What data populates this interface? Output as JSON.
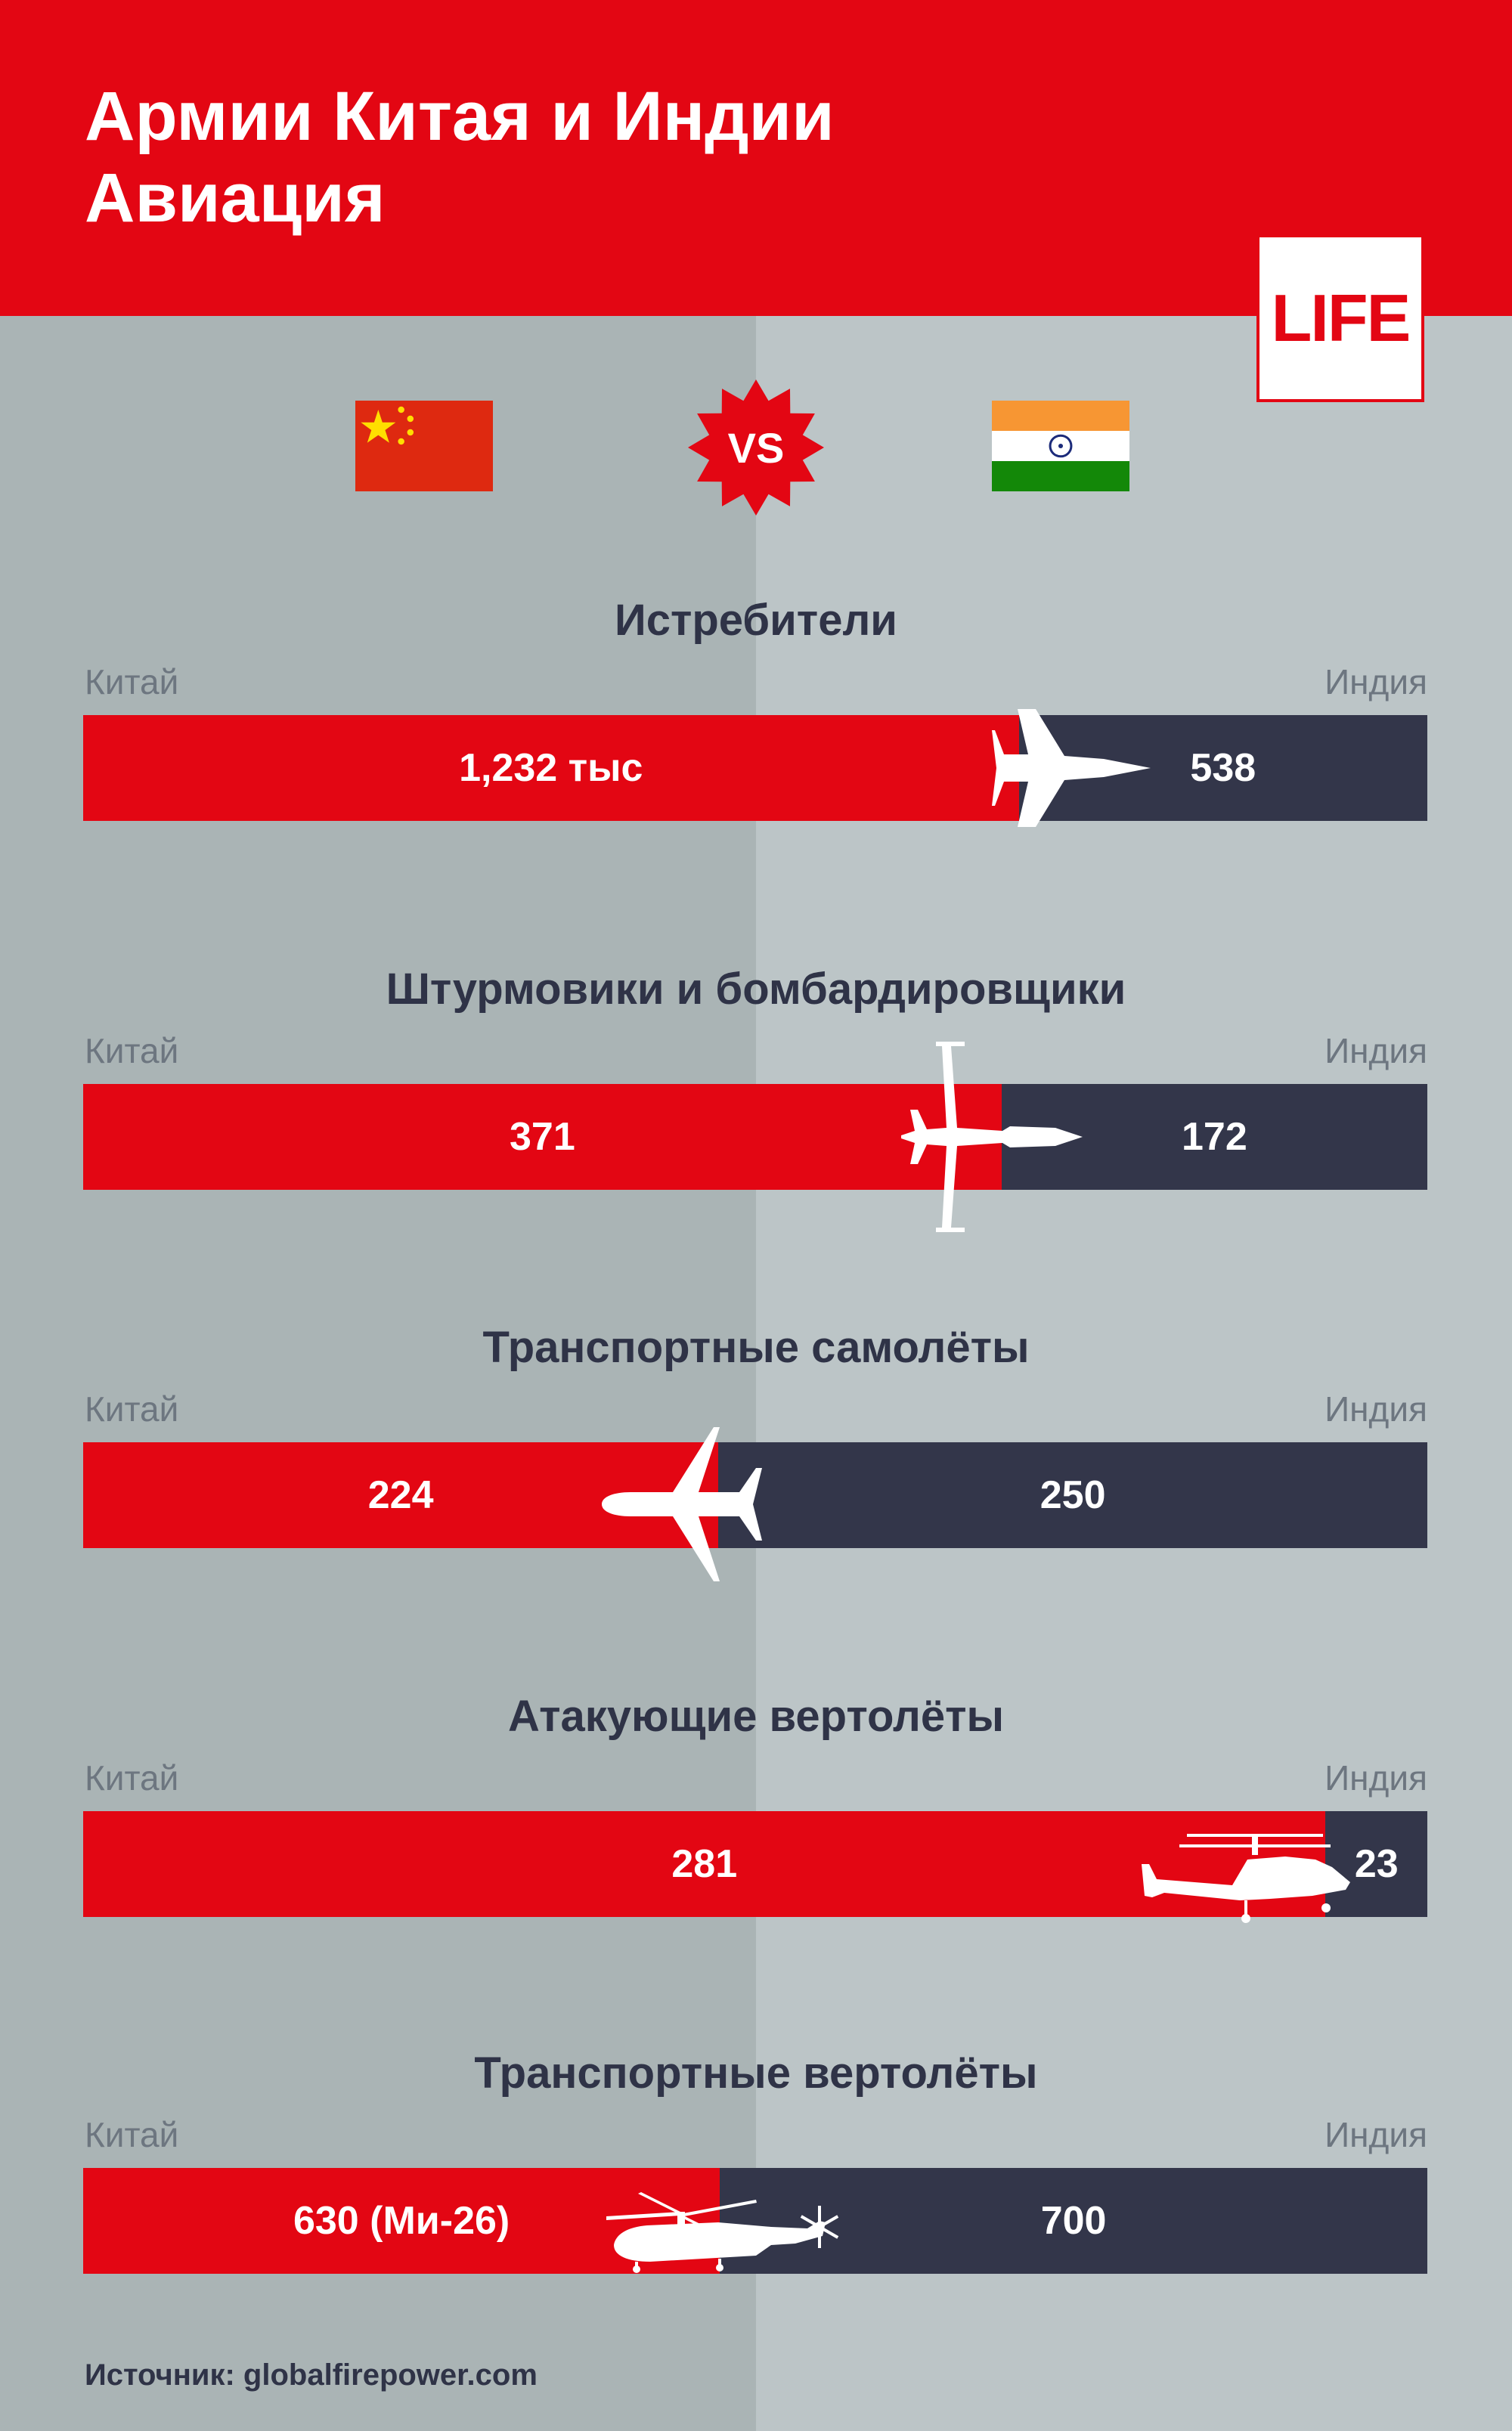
{
  "header": {
    "title_line1": "Армии Китая и Индии",
    "title_line2": "Авиация",
    "logo": "LIFE",
    "vs": "VS",
    "accent_color": "#e30613",
    "dark_color": "#33364a"
  },
  "flags": {
    "left": "china-flag-icon",
    "right": "india-flag-icon"
  },
  "chart_data": [
    {
      "type": "bar",
      "title": "Истребители",
      "categories": [
        "Китай",
        "Индия"
      ],
      "values": [
        1232,
        538
      ],
      "labels": [
        "1,232 тыс",
        "538"
      ],
      "icon": "fighter-jet-icon"
    },
    {
      "type": "bar",
      "title": "Штурмовики и бомбардировщики",
      "categories": [
        "Китай",
        "Индия"
      ],
      "values": [
        371,
        172
      ],
      "labels": [
        "371",
        "172"
      ],
      "icon": "attack-aircraft-icon"
    },
    {
      "type": "bar",
      "title": "Транспортные самолёты",
      "categories": [
        "Китай",
        "Индия"
      ],
      "values": [
        224,
        250
      ],
      "labels": [
        "224",
        "250"
      ],
      "icon": "transport-plane-icon"
    },
    {
      "type": "bar",
      "title": "Атакующие вертолёты",
      "categories": [
        "Китай",
        "Индия"
      ],
      "values": [
        281,
        23
      ],
      "labels": [
        "281",
        "23"
      ],
      "icon": "attack-helicopter-icon"
    },
    {
      "type": "bar",
      "title": "Транспортные вертолёты",
      "categories": [
        "Китай",
        "Индия"
      ],
      "values": [
        630,
        700
      ],
      "labels": [
        "630 (Ми-26)",
        "700"
      ],
      "icon": "transport-helicopter-icon"
    }
  ],
  "footer": {
    "source": "Источник: globalfirepower.com"
  }
}
